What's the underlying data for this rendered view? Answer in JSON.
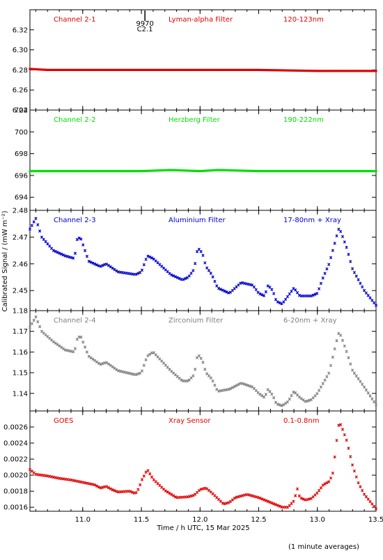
{
  "x_axis": {
    "label": "Time / h UTC, 15 Mar 2025",
    "range": [
      10.55,
      13.5
    ],
    "ticks": [
      "11.0",
      "11.5",
      "12.0",
      "12.5",
      "13.0",
      "13.5"
    ]
  },
  "y_axis_label": "Calibrated Signal / (mW m⁻²)",
  "footnote": "(1 minute averages)",
  "event_marker": {
    "time": 11.53,
    "label_top": "9970",
    "label_bottom": "C2.1"
  },
  "panels": [
    {
      "name": "Channel 2-1",
      "filter": "Lyman-alpha Filter",
      "band": "120-123nm",
      "color": "#e00000",
      "ylim": [
        6.24,
        6.34
      ],
      "yticks": [
        "6.24",
        "6.26",
        "6.28",
        "6.30",
        "6.32"
      ]
    },
    {
      "name": "Channel 2-2",
      "filter": "Herzberg Filter",
      "band": "190-222nm",
      "color": "#00e000",
      "ylim": [
        692.8,
        702
      ],
      "yticks": [
        "694",
        "696",
        "698",
        "700",
        "702"
      ]
    },
    {
      "name": "Channel 2-3",
      "filter": "Aluminium Filter",
      "band": "17-80nm + Xray",
      "color": "#0000cc",
      "ylim": [
        2.4425,
        2.48
      ],
      "yticks": [
        "2.45",
        "2.46",
        "2.47",
        "2.48"
      ]
    },
    {
      "name": "Channel 2-4",
      "filter": "Zirconium Filter",
      "band": "6-20nm + Xray",
      "color": "#808080",
      "ylim": [
        1.1315,
        1.18
      ],
      "yticks": [
        "1.14",
        "1.15",
        "1.16",
        "1.17",
        "1.18"
      ]
    },
    {
      "name": "GOES",
      "filter": "Xray Sensor",
      "band": "0.1-0.8nm",
      "color": "#e00000",
      "ylim": [
        0.00155,
        0.0028
      ],
      "yticks": [
        "0.0016",
        "0.0018",
        "0.0020",
        "0.0022",
        "0.0024",
        "0.0026"
      ]
    }
  ],
  "chart_data": [
    {
      "type": "scatter",
      "title": "Channel 2-1 Lyman-alpha Filter 120-123nm",
      "xlim": [
        10.55,
        13.5
      ],
      "ylim": [
        6.24,
        6.34
      ],
      "x": [
        10.55,
        10.7,
        11.0,
        11.5,
        12.0,
        12.5,
        13.0,
        13.5
      ],
      "values": [
        6.281,
        6.28,
        6.28,
        6.28,
        6.28,
        6.28,
        6.279,
        6.279
      ]
    },
    {
      "type": "scatter",
      "title": "Channel 2-2 Herzberg Filter 190-222nm",
      "xlim": [
        10.55,
        13.5
      ],
      "ylim": [
        692.8,
        702
      ],
      "x": [
        10.55,
        11.0,
        11.5,
        11.75,
        12.0,
        12.15,
        12.5,
        13.0,
        13.5
      ],
      "values": [
        696.4,
        696.4,
        696.4,
        696.5,
        696.4,
        696.5,
        696.4,
        696.4,
        696.4
      ]
    },
    {
      "type": "scatter",
      "title": "Channel 2-3 Aluminium Filter 17-80nm + Xray",
      "xlim": [
        10.55,
        13.5
      ],
      "ylim": [
        2.4425,
        2.48
      ],
      "x": [
        10.55,
        10.6,
        10.65,
        10.75,
        10.85,
        10.93,
        10.95,
        10.98,
        11.05,
        11.15,
        11.2,
        11.3,
        11.45,
        11.5,
        11.55,
        11.6,
        11.65,
        11.7,
        11.75,
        11.85,
        11.9,
        11.95,
        11.98,
        12.02,
        12.05,
        12.1,
        12.15,
        12.25,
        12.35,
        12.45,
        12.5,
        12.55,
        12.58,
        12.62,
        12.65,
        12.7,
        12.75,
        12.8,
        12.85,
        12.9,
        12.95,
        13.0,
        13.05,
        13.1,
        13.15,
        13.18,
        13.2,
        13.25,
        13.3,
        13.4,
        13.5
      ],
      "values": [
        2.473,
        2.477,
        2.47,
        2.465,
        2.463,
        2.462,
        2.469,
        2.47,
        2.461,
        2.459,
        2.46,
        2.457,
        2.456,
        2.457,
        2.463,
        2.462,
        2.46,
        2.458,
        2.456,
        2.454,
        2.455,
        2.458,
        2.466,
        2.464,
        2.459,
        2.456,
        2.451,
        2.449,
        2.453,
        2.452,
        2.449,
        2.448,
        2.452,
        2.45,
        2.446,
        2.445,
        2.448,
        2.451,
        2.448,
        2.448,
        2.448,
        2.449,
        2.455,
        2.46,
        2.468,
        2.473,
        2.472,
        2.466,
        2.458,
        2.45,
        2.4445
      ]
    },
    {
      "type": "scatter",
      "title": "Channel 2-4 Zirconium Filter 6-20nm + Xray",
      "xlim": [
        10.55,
        13.5
      ],
      "ylim": [
        1.1315,
        1.18
      ],
      "x": [
        10.55,
        10.6,
        10.65,
        10.75,
        10.85,
        10.93,
        10.95,
        10.98,
        11.05,
        11.15,
        11.2,
        11.3,
        11.45,
        11.5,
        11.55,
        11.6,
        11.65,
        11.7,
        11.75,
        11.85,
        11.9,
        11.95,
        11.98,
        12.02,
        12.05,
        12.1,
        12.15,
        12.25,
        12.35,
        12.45,
        12.5,
        12.55,
        12.58,
        12.62,
        12.65,
        12.7,
        12.75,
        12.8,
        12.85,
        12.9,
        12.95,
        13.0,
        13.05,
        13.1,
        13.15,
        13.18,
        13.2,
        13.25,
        13.3,
        13.4,
        13.5
      ],
      "values": [
        1.172,
        1.177,
        1.17,
        1.165,
        1.161,
        1.16,
        1.166,
        1.168,
        1.158,
        1.154,
        1.155,
        1.151,
        1.149,
        1.15,
        1.158,
        1.16,
        1.157,
        1.154,
        1.151,
        1.146,
        1.146,
        1.149,
        1.159,
        1.156,
        1.15,
        1.147,
        1.141,
        1.142,
        1.145,
        1.143,
        1.14,
        1.138,
        1.142,
        1.139,
        1.135,
        1.134,
        1.136,
        1.141,
        1.138,
        1.136,
        1.137,
        1.14,
        1.145,
        1.15,
        1.162,
        1.169,
        1.168,
        1.16,
        1.151,
        1.143,
        1.1345
      ]
    },
    {
      "type": "scatter",
      "title": "GOES Xray Sensor 0.1-0.8nm",
      "xlim": [
        10.55,
        13.5
      ],
      "ylim": [
        0.00155,
        0.0028
      ],
      "x": [
        10.55,
        10.6,
        10.7,
        10.8,
        10.9,
        11.0,
        11.1,
        11.15,
        11.2,
        11.25,
        11.3,
        11.4,
        11.45,
        11.48,
        11.5,
        11.53,
        11.55,
        11.6,
        11.7,
        11.8,
        11.9,
        11.95,
        12.0,
        12.05,
        12.1,
        12.15,
        12.2,
        12.25,
        12.3,
        12.4,
        12.5,
        12.6,
        12.7,
        12.75,
        12.8,
        12.83,
        12.85,
        12.9,
        12.95,
        13.0,
        13.05,
        13.1,
        13.13,
        13.15,
        13.18,
        13.2,
        13.25,
        13.3,
        13.35,
        13.4,
        13.5
      ],
      "values": [
        0.00207,
        0.00201,
        0.00199,
        0.00196,
        0.00194,
        0.00191,
        0.00188,
        0.00184,
        0.00186,
        0.00182,
        0.00179,
        0.0018,
        0.00177,
        0.00184,
        0.00193,
        0.00201,
        0.00207,
        0.00195,
        0.00181,
        0.00172,
        0.00173,
        0.00175,
        0.00182,
        0.00184,
        0.00178,
        0.00171,
        0.00164,
        0.00166,
        0.00172,
        0.00176,
        0.00172,
        0.00166,
        0.0016,
        0.0016,
        0.00168,
        0.00183,
        0.00172,
        0.00169,
        0.00171,
        0.00178,
        0.00188,
        0.00192,
        0.00201,
        0.00225,
        0.00262,
        0.00263,
        0.00243,
        0.00212,
        0.0019,
        0.00176,
        0.00158
      ]
    }
  ]
}
